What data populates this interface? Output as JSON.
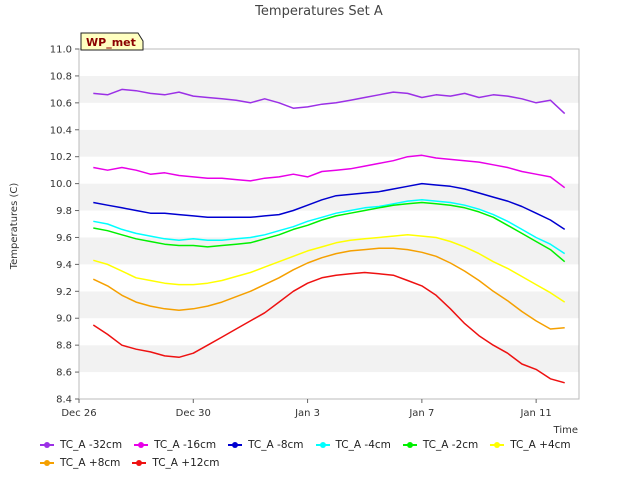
{
  "chart_data": {
    "type": "line",
    "title": "Temperatures Set A",
    "xlabel": "Time",
    "ylabel": "Temperatures (C)",
    "ylim": [
      8.4,
      11.0
    ],
    "xlim": [
      0,
      17.5
    ],
    "yticks": [
      "8.4",
      "8.6",
      "8.8",
      "9.0",
      "9.2",
      "9.4",
      "9.6",
      "9.8",
      "10.0",
      "10.2",
      "10.4",
      "10.6",
      "10.8",
      "11.0"
    ],
    "xticks": [
      {
        "label": "Dec 26",
        "day": 0
      },
      {
        "label": "Dec 30",
        "day": 4
      },
      {
        "label": "Jan 3",
        "day": 8
      },
      {
        "label": "Jan 7",
        "day": 12
      },
      {
        "label": "Jan 11",
        "day": 16
      }
    ],
    "grid": "horizontal bands",
    "legend_position": "bottom",
    "badge": "WP_met",
    "series": [
      {
        "name": "TC_A -32cm",
        "color": "#9b30e6",
        "x": [
          0.5,
          1,
          1.5,
          2,
          2.5,
          3,
          3.5,
          4,
          4.5,
          5,
          5.5,
          6,
          6.5,
          7,
          7.5,
          8,
          8.5,
          9,
          9.5,
          10,
          10.5,
          11,
          11.5,
          12,
          12.5,
          13,
          13.5,
          14,
          14.5,
          15,
          15.5,
          16,
          16.5,
          17
        ],
        "y": [
          10.67,
          10.66,
          10.7,
          10.69,
          10.67,
          10.66,
          10.68,
          10.65,
          10.64,
          10.63,
          10.62,
          10.6,
          10.63,
          10.6,
          10.56,
          10.57,
          10.59,
          10.6,
          10.62,
          10.64,
          10.66,
          10.68,
          10.67,
          10.64,
          10.66,
          10.65,
          10.67,
          10.64,
          10.66,
          10.65,
          10.63,
          10.6,
          10.62,
          10.52
        ]
      },
      {
        "name": "TC_A -16cm",
        "color": "#e800e8",
        "x": [
          0.5,
          1,
          1.5,
          2,
          2.5,
          3,
          3.5,
          4,
          4.5,
          5,
          5.5,
          6,
          6.5,
          7,
          7.5,
          8,
          8.5,
          9,
          9.5,
          10,
          10.5,
          11,
          11.5,
          12,
          12.5,
          13,
          13.5,
          14,
          14.5,
          15,
          15.5,
          16,
          16.5,
          17
        ],
        "y": [
          10.12,
          10.1,
          10.12,
          10.1,
          10.07,
          10.08,
          10.06,
          10.05,
          10.04,
          10.04,
          10.03,
          10.02,
          10.04,
          10.05,
          10.07,
          10.05,
          10.09,
          10.1,
          10.11,
          10.13,
          10.15,
          10.17,
          10.2,
          10.21,
          10.19,
          10.18,
          10.17,
          10.16,
          10.14,
          10.12,
          10.09,
          10.07,
          10.05,
          9.97
        ]
      },
      {
        "name": "TC_A -8cm",
        "color": "#0000d0",
        "x": [
          0.5,
          1,
          1.5,
          2,
          2.5,
          3,
          3.5,
          4,
          4.5,
          5,
          5.5,
          6,
          6.5,
          7,
          7.5,
          8,
          8.5,
          9,
          9.5,
          10,
          10.5,
          11,
          11.5,
          12,
          12.5,
          13,
          13.5,
          14,
          14.5,
          15,
          15.5,
          16,
          16.5,
          17
        ],
        "y": [
          9.86,
          9.84,
          9.82,
          9.8,
          9.78,
          9.78,
          9.77,
          9.76,
          9.75,
          9.75,
          9.75,
          9.75,
          9.76,
          9.77,
          9.8,
          9.84,
          9.88,
          9.91,
          9.92,
          9.93,
          9.94,
          9.96,
          9.98,
          10.0,
          9.99,
          9.98,
          9.96,
          9.93,
          9.9,
          9.87,
          9.83,
          9.78,
          9.73,
          9.66
        ]
      },
      {
        "name": "TC_A -4cm",
        "color": "#00ffff",
        "x": [
          0.5,
          1,
          1.5,
          2,
          2.5,
          3,
          3.5,
          4,
          4.5,
          5,
          5.5,
          6,
          6.5,
          7,
          7.5,
          8,
          8.5,
          9,
          9.5,
          10,
          10.5,
          11,
          11.5,
          12,
          12.5,
          13,
          13.5,
          14,
          14.5,
          15,
          15.5,
          16,
          16.5,
          17
        ],
        "y": [
          9.72,
          9.7,
          9.66,
          9.63,
          9.61,
          9.59,
          9.58,
          9.59,
          9.58,
          9.58,
          9.59,
          9.6,
          9.62,
          9.65,
          9.68,
          9.72,
          9.75,
          9.78,
          9.8,
          9.82,
          9.83,
          9.85,
          9.87,
          9.88,
          9.87,
          9.86,
          9.84,
          9.81,
          9.77,
          9.72,
          9.66,
          9.6,
          9.55,
          9.48
        ]
      },
      {
        "name": "TC_A -2cm",
        "color": "#00f000",
        "x": [
          0.5,
          1,
          1.5,
          2,
          2.5,
          3,
          3.5,
          4,
          4.5,
          5,
          5.5,
          6,
          6.5,
          7,
          7.5,
          8,
          8.5,
          9,
          9.5,
          10,
          10.5,
          11,
          11.5,
          12,
          12.5,
          13,
          13.5,
          14,
          14.5,
          15,
          15.5,
          16,
          16.5,
          17
        ],
        "y": [
          9.67,
          9.65,
          9.62,
          9.59,
          9.57,
          9.55,
          9.54,
          9.54,
          9.53,
          9.54,
          9.55,
          9.56,
          9.59,
          9.62,
          9.66,
          9.69,
          9.73,
          9.76,
          9.78,
          9.8,
          9.82,
          9.84,
          9.85,
          9.86,
          9.85,
          9.84,
          9.82,
          9.79,
          9.75,
          9.69,
          9.63,
          9.57,
          9.51,
          9.42
        ]
      },
      {
        "name": "TC_A +4cm",
        "color": "#ffff00",
        "x": [
          0.5,
          1,
          1.5,
          2,
          2.5,
          3,
          3.5,
          4,
          4.5,
          5,
          5.5,
          6,
          6.5,
          7,
          7.5,
          8,
          8.5,
          9,
          9.5,
          10,
          10.5,
          11,
          11.5,
          12,
          12.5,
          13,
          13.5,
          14,
          14.5,
          15,
          15.5,
          16,
          16.5,
          17
        ],
        "y": [
          9.43,
          9.4,
          9.35,
          9.3,
          9.28,
          9.26,
          9.25,
          9.25,
          9.26,
          9.28,
          9.31,
          9.34,
          9.38,
          9.42,
          9.46,
          9.5,
          9.53,
          9.56,
          9.58,
          9.59,
          9.6,
          9.61,
          9.62,
          9.61,
          9.6,
          9.57,
          9.53,
          9.48,
          9.42,
          9.37,
          9.31,
          9.25,
          9.19,
          9.12
        ]
      },
      {
        "name": "TC_A +8cm",
        "color": "#f5a000",
        "x": [
          0.5,
          1,
          1.5,
          2,
          2.5,
          3,
          3.5,
          4,
          4.5,
          5,
          5.5,
          6,
          6.5,
          7,
          7.5,
          8,
          8.5,
          9,
          9.5,
          10,
          10.5,
          11,
          11.5,
          12,
          12.5,
          13,
          13.5,
          14,
          14.5,
          15,
          15.5,
          16,
          16.5,
          17
        ],
        "y": [
          9.29,
          9.24,
          9.17,
          9.12,
          9.09,
          9.07,
          9.06,
          9.07,
          9.09,
          9.12,
          9.16,
          9.2,
          9.25,
          9.3,
          9.36,
          9.41,
          9.45,
          9.48,
          9.5,
          9.51,
          9.52,
          9.52,
          9.51,
          9.49,
          9.46,
          9.41,
          9.35,
          9.28,
          9.2,
          9.13,
          9.05,
          8.98,
          8.92,
          8.93
        ]
      },
      {
        "name": "TC_A +12cm",
        "color": "#ee1111",
        "x": [
          0.5,
          1,
          1.5,
          2,
          2.5,
          3,
          3.5,
          4,
          4.5,
          5,
          5.5,
          6,
          6.5,
          7,
          7.5,
          8,
          8.5,
          9,
          9.5,
          10,
          10.5,
          11,
          11.5,
          12,
          12.5,
          13,
          13.5,
          14,
          14.5,
          15,
          15.5,
          16,
          16.5,
          17
        ],
        "y": [
          8.95,
          8.88,
          8.8,
          8.77,
          8.75,
          8.72,
          8.71,
          8.74,
          8.8,
          8.86,
          8.92,
          8.98,
          9.04,
          9.12,
          9.2,
          9.26,
          9.3,
          9.32,
          9.33,
          9.34,
          9.33,
          9.32,
          9.28,
          9.24,
          9.17,
          9.07,
          8.96,
          8.87,
          8.8,
          8.74,
          8.66,
          8.62,
          8.55,
          8.52
        ]
      }
    ]
  }
}
